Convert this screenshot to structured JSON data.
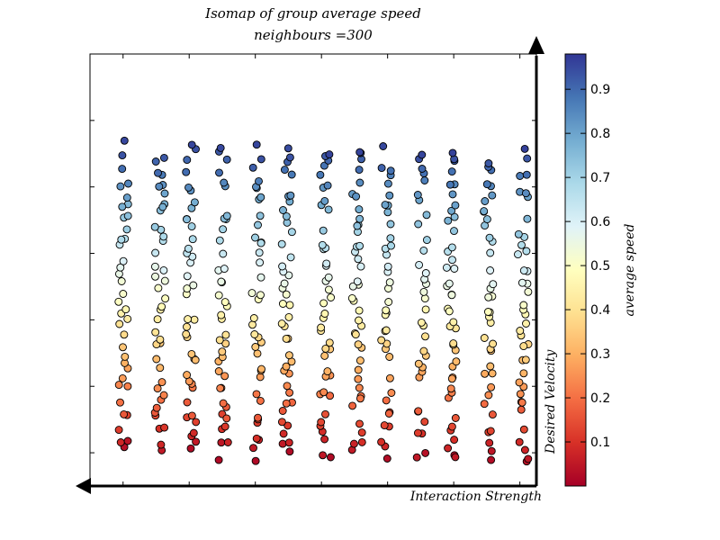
{
  "chart_data": {
    "type": "scatter",
    "title": "Isomap of group average speed",
    "subtitle": "neighbours =300",
    "xlabel": "Interaction Strength",
    "ylabel": "Desired Velocity",
    "colorbar": {
      "label": "average speed",
      "range": [
        0.0,
        0.98
      ],
      "ticks": [
        0.1,
        0.2,
        0.3,
        0.4,
        0.5,
        0.6,
        0.7,
        0.8,
        0.9
      ],
      "colormap": [
        "#a50026",
        "#d73027",
        "#f46d43",
        "#fdae61",
        "#fee090",
        "#ffffbf",
        "#e0f3f8",
        "#abd9e9",
        "#74add1",
        "#4575b4",
        "#313695"
      ]
    },
    "xlim": [
      -1.0,
      12.5
    ],
    "ylim": [
      -1.0,
      12.0
    ],
    "grid": false,
    "columns_x": [
      0,
      1,
      2,
      3,
      4,
      5,
      6,
      7,
      8,
      9,
      10,
      11,
      12
    ],
    "rows": 45,
    "y_start": 0.0,
    "y_step": 0.21,
    "speed_start": 0.03,
    "speed_step": 0.021
  }
}
